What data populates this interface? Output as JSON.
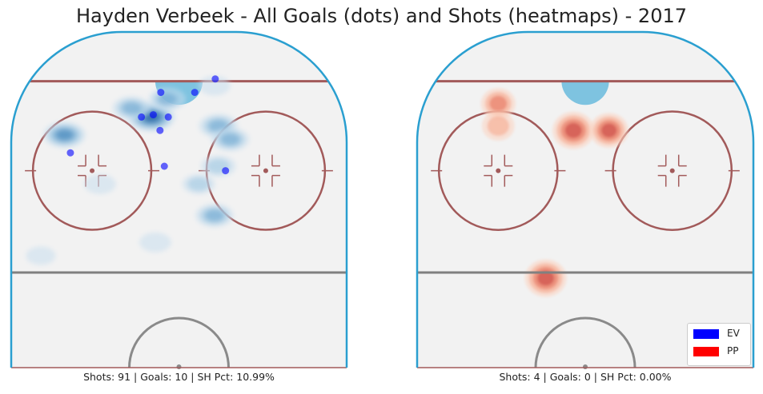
{
  "title": "Hayden Verbeek - All Goals (dots) and Shots (heatmaps) - 2017",
  "colors": {
    "EV": "#0000ff",
    "PP": "#ff0000"
  },
  "legend": [
    {
      "label": "EV",
      "color": "#0000ff"
    },
    {
      "label": "PP",
      "color": "#ff0000"
    }
  ],
  "chart_data": [
    {
      "type": "heatmap",
      "strength": "EV",
      "caption": "Shots: 91 | Goals: 10 | SH Pct: 10.99%",
      "shots": 91,
      "goals_count": 10,
      "sh_pct": "10.99%",
      "xlim": [
        -42.5,
        42.5
      ],
      "ylim": [
        25,
        100
      ],
      "shot_clusters": [
        {
          "x": -7,
          "y": 81,
          "density": 1.0
        },
        {
          "x": -12,
          "y": 83,
          "density": 0.55
        },
        {
          "x": -3,
          "y": 85,
          "density": 0.5
        },
        {
          "x": -29,
          "y": 77,
          "density": 0.75
        },
        {
          "x": 10,
          "y": 79,
          "density": 0.6
        },
        {
          "x": 13,
          "y": 76,
          "density": 0.55
        },
        {
          "x": 10,
          "y": 70,
          "density": 0.4
        },
        {
          "x": 9,
          "y": 59,
          "density": 0.55
        },
        {
          "x": -6,
          "y": 53,
          "density": 0.25
        },
        {
          "x": 5,
          "y": 66,
          "density": 0.3
        },
        {
          "x": -20,
          "y": 66,
          "density": 0.25
        },
        {
          "x": 9,
          "y": 88,
          "density": 0.25
        },
        {
          "x": -35,
          "y": 50,
          "density": 0.15
        }
      ],
      "goals": [
        {
          "x": -4.6,
          "y": 86.5
        },
        {
          "x": -9.5,
          "y": 81
        },
        {
          "x": -6.5,
          "y": 81.5
        },
        {
          "x": -2.7,
          "y": 81
        },
        {
          "x": 4.0,
          "y": 86.5
        },
        {
          "x": 9.2,
          "y": 89.5
        },
        {
          "x": -4.8,
          "y": 78
        },
        {
          "x": -27.5,
          "y": 73
        },
        {
          "x": -3.7,
          "y": 70
        },
        {
          "x": 11.8,
          "y": 69
        }
      ]
    },
    {
      "type": "heatmap",
      "strength": "PP",
      "caption": "Shots: 4 | Goals: 0 | SH Pct: 0.00%",
      "shots": 4,
      "goals_count": 0,
      "sh_pct": "0.00%",
      "xlim": [
        -42.5,
        42.5
      ],
      "ylim": [
        25,
        100
      ],
      "shot_clusters": [
        {
          "x": -3,
          "y": 78,
          "density": 0.85
        },
        {
          "x": 6,
          "y": 78,
          "density": 0.7
        },
        {
          "x": -22,
          "y": 84,
          "density": 0.5
        },
        {
          "x": -22,
          "y": 79,
          "density": 0.4
        },
        {
          "x": -10,
          "y": 45,
          "density": 0.85
        }
      ],
      "goals": []
    }
  ]
}
